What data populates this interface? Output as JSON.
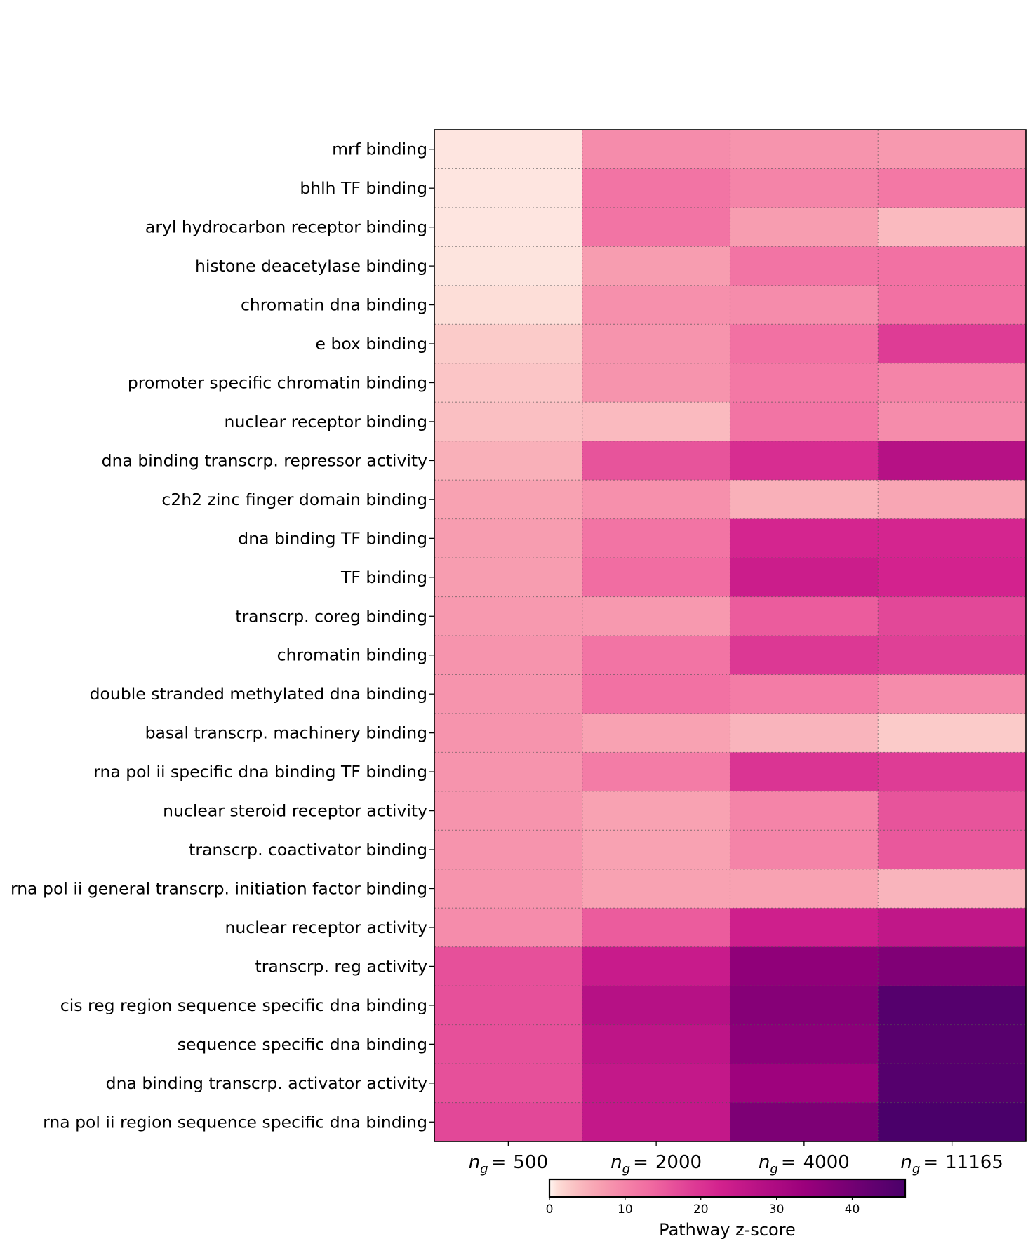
{
  "chart_data": {
    "type": "heatmap",
    "columns": [
      {
        "var": "n",
        "sub": "g",
        "eq": "=",
        "num": "500"
      },
      {
        "var": "n",
        "sub": "g",
        "eq": "=",
        "num": "2000"
      },
      {
        "var": "n",
        "sub": "g",
        "eq": "=",
        "num": "4000"
      },
      {
        "var": "n",
        "sub": "g",
        "eq": "=",
        "num": "11165"
      }
    ],
    "rows": [
      "mrf binding",
      "bhlh TF binding",
      "aryl hydrocarbon receptor binding",
      "histone deacetylase binding",
      "chromatin dna binding",
      "e box binding",
      "promoter specific chromatin binding",
      "nuclear receptor binding",
      "dna binding transcrp. repressor activity",
      "c2h2 zinc finger domain binding",
      "dna binding TF binding",
      "TF binding",
      "transcrp. coreg binding",
      "chromatin binding",
      "double stranded methylated dna binding",
      "basal transcrp. machinery binding",
      "rna pol ii specific dna binding TF binding",
      "nuclear steroid receptor activity",
      "transcrp. coactivator binding",
      "rna pol ii general transcrp. initiation factor binding",
      "nuclear receptor activity",
      "transcrp. reg activity",
      "cis reg region sequence specific dna binding",
      "sequence specific dna binding",
      "dna binding transcrp. activator activity",
      "rna pol ii region sequence specific dna binding"
    ],
    "values": [
      [
        0.5,
        9,
        8,
        7.5
      ],
      [
        0.5,
        12,
        10,
        11.5
      ],
      [
        0.5,
        12,
        7,
        4
      ],
      [
        0.6,
        7,
        12,
        12.5
      ],
      [
        1,
        8.5,
        9,
        12.5
      ],
      [
        2.5,
        8,
        12.5,
        19
      ],
      [
        3,
        8,
        11.5,
        10
      ],
      [
        3.5,
        4,
        12,
        9
      ],
      [
        5,
        16,
        21,
        28
      ],
      [
        6.5,
        8.5,
        5,
        6
      ],
      [
        7,
        12,
        22,
        22
      ],
      [
        7,
        13,
        24,
        22.5
      ],
      [
        7.5,
        7.5,
        15,
        17.5
      ],
      [
        8,
        12,
        19.5,
        18.5
      ],
      [
        8,
        12.5,
        11,
        9
      ],
      [
        8,
        6.5,
        4.5,
        2.5
      ],
      [
        8,
        11,
        20,
        19
      ],
      [
        8,
        6.5,
        10,
        16
      ],
      [
        8,
        6.5,
        10,
        15.5
      ],
      [
        8,
        6.5,
        6.5,
        4.5
      ],
      [
        9,
        15,
        23.5,
        26
      ],
      [
        16.5,
        24.5,
        35.5,
        38
      ],
      [
        16.5,
        28,
        37,
        45
      ],
      [
        16.5,
        26.5,
        36,
        44.5
      ],
      [
        16.5,
        25.5,
        33,
        45
      ],
      [
        17.5,
        25.5,
        38.5,
        47
      ]
    ],
    "colorbar": {
      "label": "Pathway z-score",
      "ticks": [
        0,
        10,
        20,
        30,
        40
      ],
      "range": [
        0,
        47
      ],
      "scale": "power-compressed",
      "colormap": [
        "#fff5f0",
        "#fcd5cf",
        "#f8a3b2",
        "#f16ba1",
        "#d3228e",
        "#9b007c",
        "#4a006a"
      ]
    }
  }
}
